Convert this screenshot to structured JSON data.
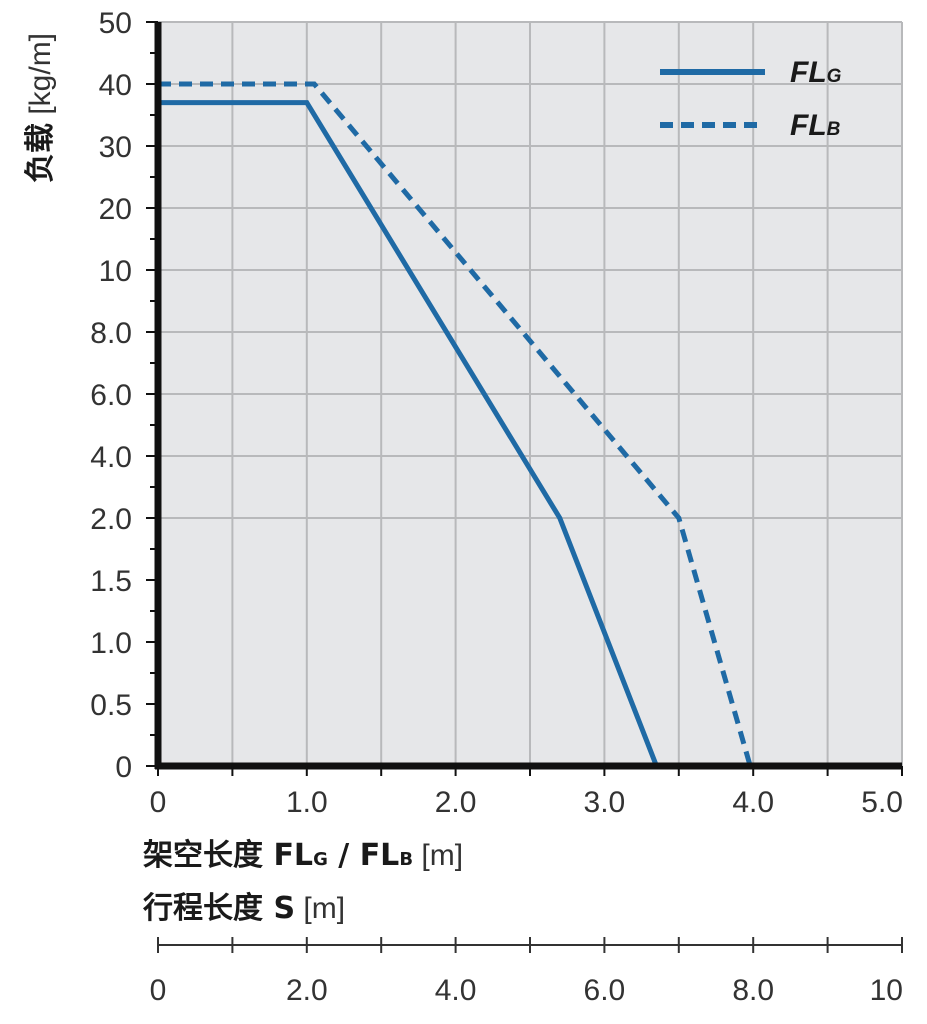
{
  "chart_data": {
    "type": "line",
    "ylabel_bold": "负载",
    "ylabel_unit": " [kg/m]",
    "xlabel_bold": "架空长度 FL",
    "xlabel_sub_g": "G",
    "xlabel_sep": " / FL",
    "xlabel_sub_b": "B",
    "xlabel_unit": " [m]",
    "x2label_bold": "行程长度 S",
    "x2label_unit": " [m]",
    "x_ticks": [
      "0",
      "1.0",
      "2.0",
      "3.0",
      "4.0",
      "5.0"
    ],
    "x_tick_values": [
      0,
      1,
      2,
      3,
      4,
      5
    ],
    "xlim": [
      0,
      5
    ],
    "x2_ticks": [
      "0",
      "2.0",
      "4.0",
      "6.0",
      "8.0",
      "10"
    ],
    "x2_tick_values": [
      0,
      2,
      4,
      6,
      8,
      10
    ],
    "x2lim": [
      0,
      10
    ],
    "y_ticks": [
      "0",
      "0.5",
      "1.0",
      "1.5",
      "2.0",
      "4.0",
      "6.0",
      "8.0",
      "10",
      "20",
      "30",
      "40",
      "50"
    ],
    "y_tick_values": [
      0,
      0.5,
      1.0,
      1.5,
      2.0,
      4.0,
      6.0,
      8.0,
      10,
      20,
      30,
      40,
      50
    ],
    "y_scale": "piecewise (tick labels evenly spaced)",
    "grid": true,
    "legend_position": "top-right",
    "series": [
      {
        "name": "FL",
        "name_sub": "G",
        "style": "solid",
        "color": "#1f6aa5",
        "x": [
          0,
          1.0,
          2.7,
          3.35
        ],
        "y": [
          37,
          37,
          2.0,
          0
        ]
      },
      {
        "name": "FL",
        "name_sub": "B",
        "style": "dashed",
        "color": "#1f6aa5",
        "x": [
          0,
          1.05,
          3.5,
          3.98
        ],
        "y": [
          40,
          40,
          2.0,
          0
        ]
      }
    ],
    "colors": {
      "plot_bg": "#e6e7e9",
      "grid": "#b8b9bb",
      "axis": "#111111",
      "line": "#1f6aa5"
    }
  }
}
